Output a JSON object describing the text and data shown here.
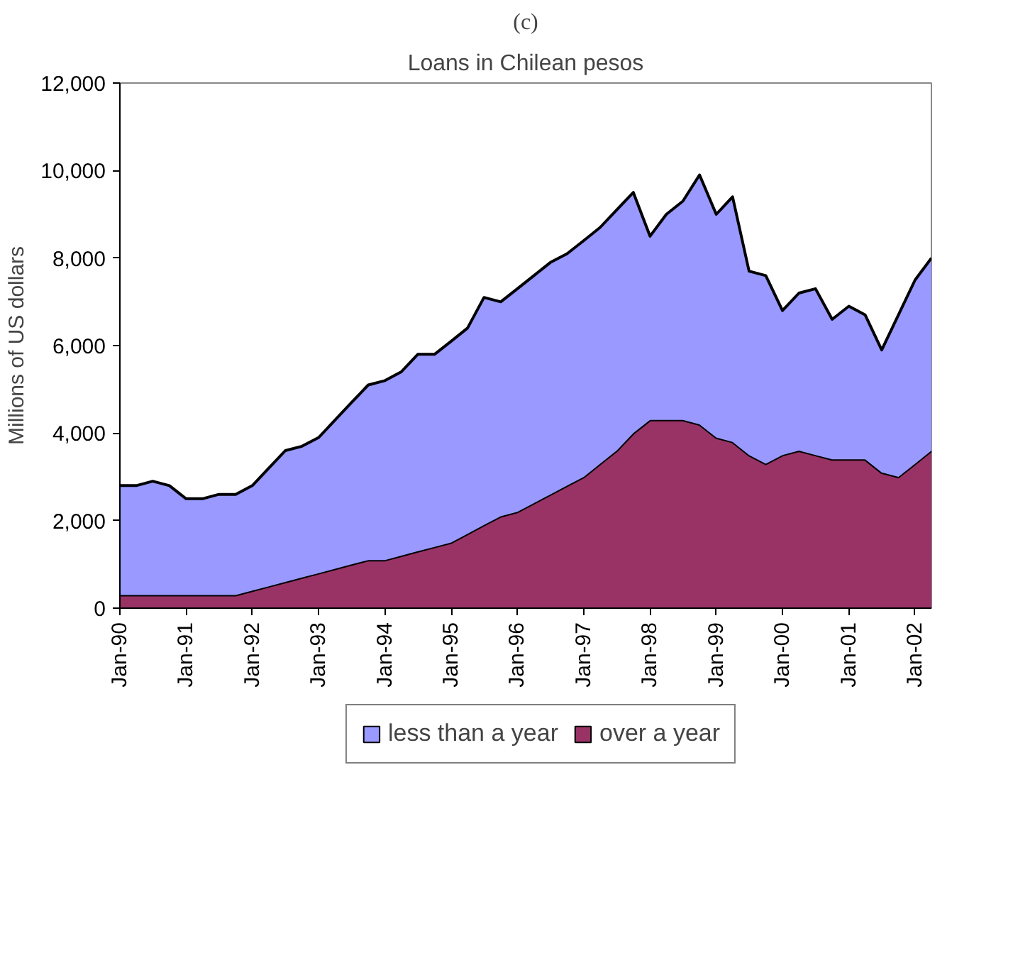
{
  "chart_data": {
    "type": "area",
    "title": "(c)",
    "subtitle": "Loans in Chilean pesos",
    "ylabel": "Millions of US dollars",
    "stacked": true,
    "grid": false,
    "legend": "bottom",
    "x": [
      "1990-01",
      "1990-04",
      "1990-07",
      "1990-10",
      "1991-01",
      "1991-04",
      "1991-07",
      "1991-10",
      "1992-01",
      "1992-04",
      "1992-07",
      "1992-10",
      "1993-01",
      "1993-04",
      "1993-07",
      "1993-10",
      "1994-01",
      "1994-04",
      "1994-07",
      "1994-10",
      "1995-01",
      "1995-04",
      "1995-07",
      "1995-10",
      "1996-01",
      "1996-04",
      "1996-07",
      "1996-10",
      "1997-01",
      "1997-04",
      "1997-07",
      "1997-10",
      "1998-01",
      "1998-04",
      "1998-07",
      "1998-10",
      "1999-01",
      "1999-04",
      "1999-07",
      "1999-10",
      "2000-01",
      "2000-04",
      "2000-07",
      "2000-10",
      "2001-01",
      "2001-04",
      "2001-07",
      "2001-10",
      "2002-01",
      "2002-04"
    ],
    "series": [
      {
        "name": "over a year",
        "color": "#993366",
        "values": [
          300,
          300,
          300,
          300,
          300,
          300,
          300,
          300,
          400,
          500,
          600,
          700,
          800,
          900,
          1000,
          1100,
          1100,
          1200,
          1300,
          1400,
          1500,
          1700,
          1900,
          2100,
          2200,
          2400,
          2600,
          2800,
          3000,
          3300,
          3600,
          4000,
          4300,
          4300,
          4300,
          4200,
          3900,
          3800,
          3500,
          3300,
          3500,
          3600,
          3500,
          3400,
          3400,
          3400,
          3100,
          3000,
          3300,
          3600
        ]
      },
      {
        "name": "less than a year",
        "color": "#9999ff",
        "values": [
          2500,
          2500,
          2600,
          2500,
          2200,
          2200,
          2300,
          2300,
          2400,
          2700,
          3000,
          3000,
          3100,
          3400,
          3700,
          4000,
          4100,
          4200,
          4500,
          4400,
          4600,
          4700,
          5200,
          4900,
          5100,
          5200,
          5300,
          5300,
          5400,
          5400,
          5500,
          5500,
          4200,
          4700,
          5000,
          5700,
          5100,
          5600,
          4200,
          4300,
          3300,
          3600,
          3800,
          3200,
          3500,
          3300,
          2800,
          3700,
          4200,
          4400
        ]
      }
    ],
    "xlim": [
      "1990-01",
      "2002-04"
    ],
    "xticks": [
      {
        "value": "1990-01",
        "label": "Jan-90"
      },
      {
        "value": "1991-01",
        "label": "Jan-91"
      },
      {
        "value": "1992-01",
        "label": "Jan-92"
      },
      {
        "value": "1993-01",
        "label": "Jan-93"
      },
      {
        "value": "1994-01",
        "label": "Jan-94"
      },
      {
        "value": "1995-01",
        "label": "Jan-95"
      },
      {
        "value": "1996-01",
        "label": "Jan-96"
      },
      {
        "value": "1997-01",
        "label": "Jan-97"
      },
      {
        "value": "1998-01",
        "label": "Jan-98"
      },
      {
        "value": "1999-01",
        "label": "Jan-99"
      },
      {
        "value": "2000-01",
        "label": "Jan-00"
      },
      {
        "value": "2001-01",
        "label": "Jan-01"
      },
      {
        "value": "2002-01",
        "label": "Jan-02"
      }
    ],
    "ylim": [
      0,
      12000
    ],
    "yticks": [
      0,
      {
        "value": 2000,
        "label": "2,000"
      },
      {
        "value": 4000,
        "label": "4,000"
      },
      {
        "value": 6000,
        "label": "6,000"
      },
      {
        "value": 8000,
        "label": "8,000"
      },
      {
        "value": 10000,
        "label": "10,000"
      },
      {
        "value": 12000,
        "label": "12,000"
      }
    ]
  }
}
